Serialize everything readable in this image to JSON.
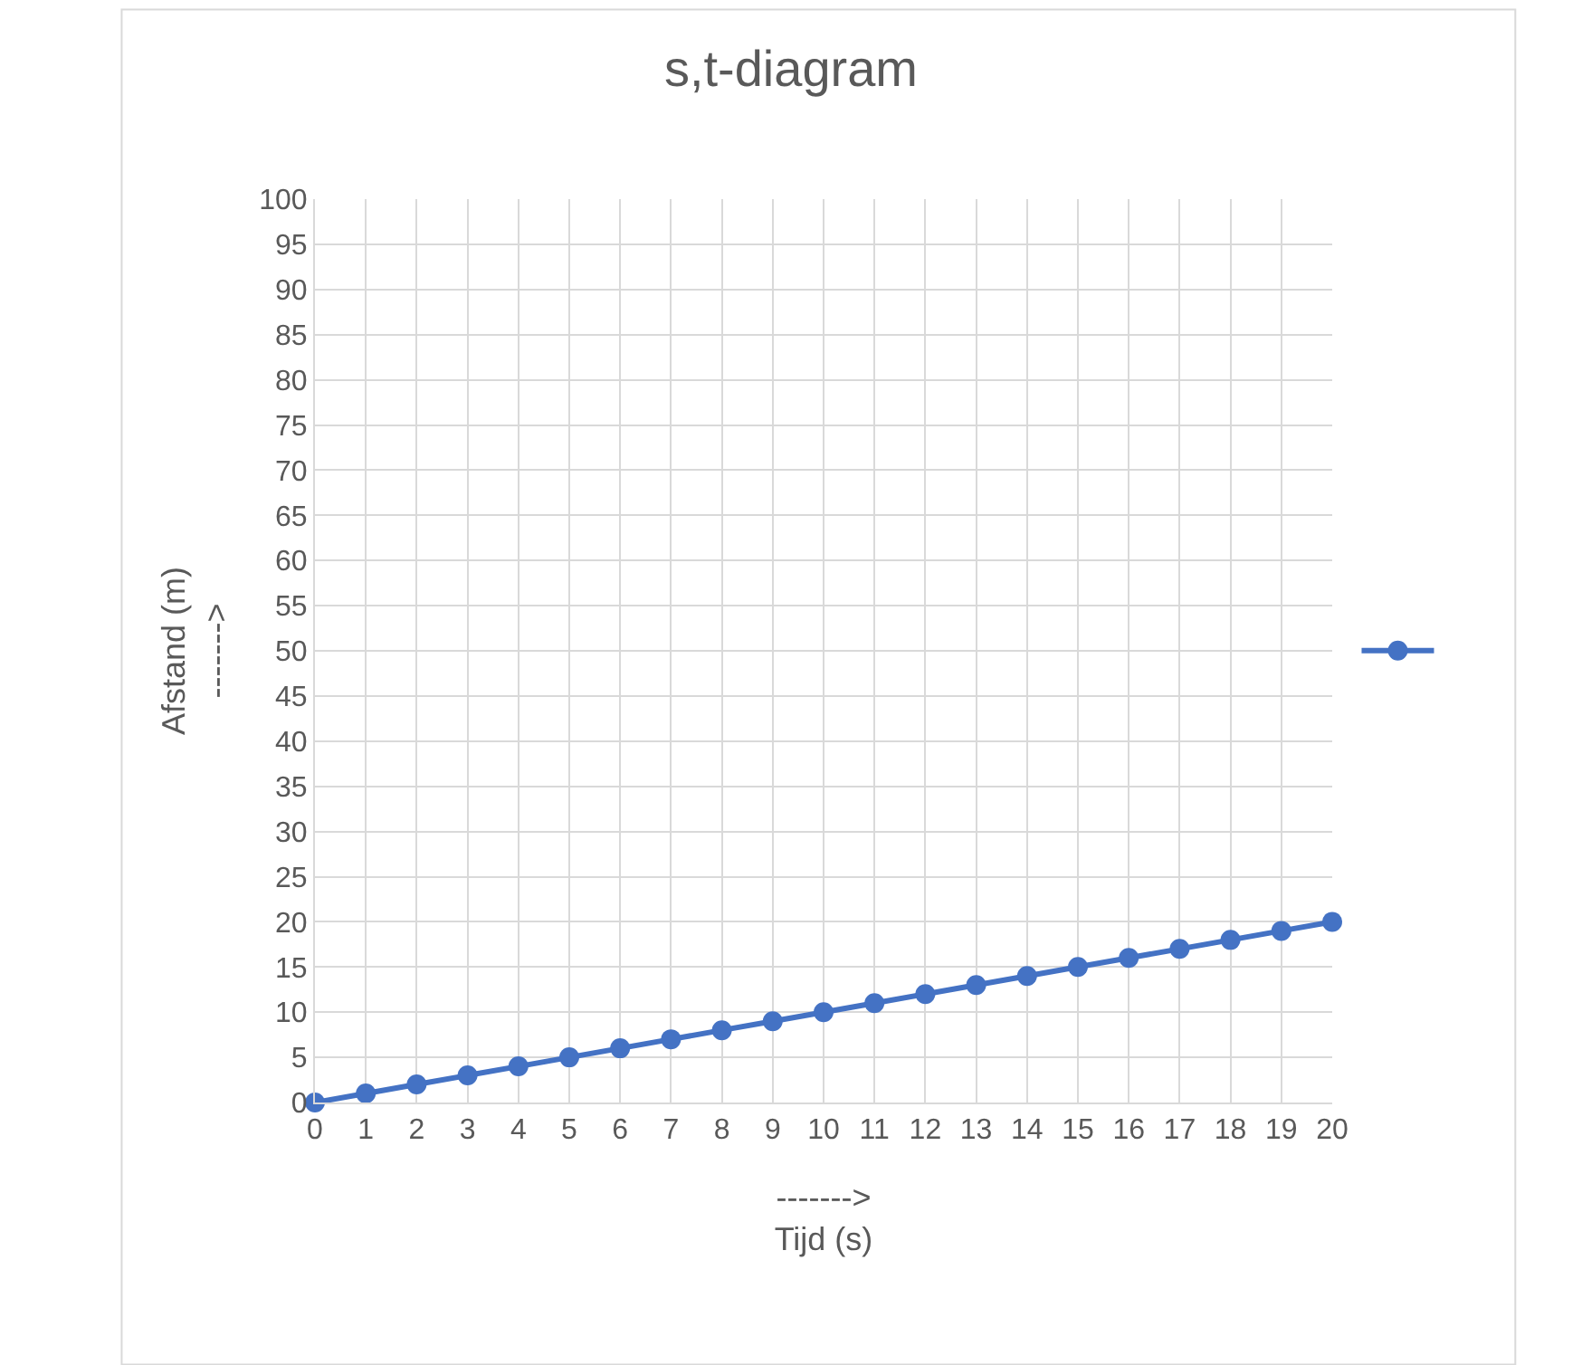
{
  "chart_data": {
    "type": "line",
    "title": "s,t-diagram",
    "xlabel": "------->\nTijd (s)",
    "ylabel": "Afstand (m)\n------->",
    "x": [
      0,
      1,
      2,
      3,
      4,
      5,
      6,
      7,
      8,
      9,
      10,
      11,
      12,
      13,
      14,
      15,
      16,
      17,
      18,
      19,
      20
    ],
    "series": [
      {
        "color": "#4472c4",
        "values": [
          0,
          1,
          2,
          3,
          4,
          5,
          6,
          7,
          8,
          9,
          10,
          11,
          12,
          13,
          14,
          15,
          16,
          17,
          18,
          19,
          20
        ]
      }
    ],
    "xlim": [
      0,
      20
    ],
    "xticks": [
      0,
      1,
      2,
      3,
      4,
      5,
      6,
      7,
      8,
      9,
      10,
      11,
      12,
      13,
      14,
      15,
      16,
      17,
      18,
      19,
      20
    ],
    "ylim": [
      0,
      100
    ],
    "yticks": [
      0,
      5,
      10,
      15,
      20,
      25,
      30,
      35,
      40,
      45,
      50,
      55,
      60,
      65,
      70,
      75,
      80,
      85,
      90,
      95,
      100
    ],
    "grid": true,
    "marker": "circle",
    "line_style": "solid"
  }
}
